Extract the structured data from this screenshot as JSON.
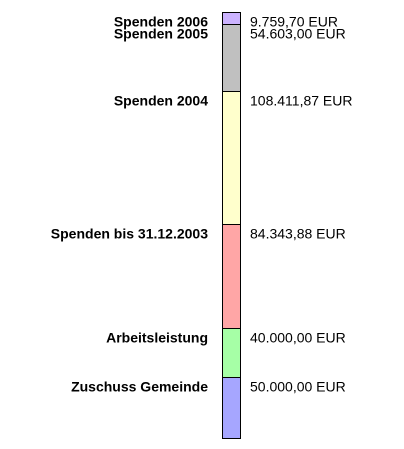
{
  "chart_data": {
    "type": "bar",
    "stacked": true,
    "orientation": "vertical",
    "unit": "EUR",
    "segments": [
      {
        "label": "Spenden 2006",
        "value": 9759.7,
        "value_text": "9.759,70 EUR",
        "color": "#ccb3ff"
      },
      {
        "label": "Spenden 2005",
        "value": 54603.0,
        "value_text": "54.603,00 EUR",
        "color": "#c0c0c0"
      },
      {
        "label": "Spenden 2004",
        "value": 108411.87,
        "value_text": "108.411,87 EUR",
        "color": "#ffffcc"
      },
      {
        "label": "Spenden bis 31.12.2003",
        "value": 84343.88,
        "value_text": "84.343,88 EUR",
        "color": "#ffa6a6"
      },
      {
        "label": "Arbeitsleistung",
        "value": 40000.0,
        "value_text": "40.000,00 EUR",
        "color": "#a6ffa6"
      },
      {
        "label": "Zuschuss Gemeinde",
        "value": 50000.0,
        "value_text": "50.000,00 EUR",
        "color": "#a6a6ff"
      }
    ]
  }
}
